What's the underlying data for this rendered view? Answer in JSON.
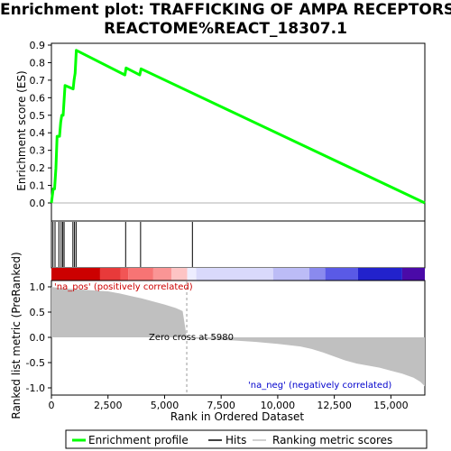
{
  "chart_data": {
    "type": "line",
    "title_line1": "Enrichment plot: TRAFFICKING OF AMPA RECEPTORS%",
    "title_line2": "REACTOME%REACT_18307.1",
    "top_panel": {
      "ylabel": "Enrichment score (ES)",
      "ylim": [
        -0.05,
        0.9
      ],
      "yticks": [
        "0.0",
        "0.1",
        "0.2",
        "0.3",
        "0.4",
        "0.5",
        "0.6",
        "0.7",
        "0.8",
        "0.9"
      ],
      "series_color": "#00ff00",
      "profile": {
        "x": [
          0,
          40,
          80,
          140,
          200,
          250,
          300,
          360,
          410,
          460,
          520,
          600,
          960,
          1000,
          1050,
          1100,
          3250,
          3300,
          3900,
          3960,
          16500
        ],
        "y": [
          0.0,
          0.04,
          0.08,
          0.08,
          0.2,
          0.38,
          0.38,
          0.38,
          0.46,
          0.5,
          0.5,
          0.67,
          0.65,
          0.7,
          0.74,
          0.87,
          0.73,
          0.77,
          0.73,
          0.765,
          0.0
        ]
      },
      "hits": [
        70,
        160,
        330,
        430,
        500,
        560,
        950,
        1020,
        1090,
        3280,
        3940,
        6230
      ]
    },
    "bottom_panel": {
      "ylabel": "Ranked list metric (PreRanked)",
      "ylim": [
        -1.1,
        1.1
      ],
      "yticks": [
        "-1.0",
        "-0.5",
        "0.0",
        "0.5",
        "1.0"
      ],
      "xlabel": "Rank in Ordered Dataset",
      "xticks": [
        "0",
        "2,500",
        "5,000",
        "7,500",
        "10,000",
        "12,500",
        "15,000"
      ],
      "xtick_values": [
        0,
        2500,
        5000,
        7500,
        10000,
        12500,
        15000
      ],
      "xlim": [
        0,
        16500
      ],
      "metric": {
        "x": [
          0,
          300,
          800,
          1500,
          2500,
          3000,
          3500,
          4000,
          4500,
          5000,
          5500,
          5800,
          5980,
          6200,
          7000,
          8000,
          9000,
          10000,
          11000,
          11500,
          12000,
          12500,
          13000,
          13500,
          14000,
          14500,
          15000,
          15500,
          16000,
          16300,
          16500
        ],
        "y": [
          1.0,
          0.98,
          0.96,
          0.94,
          0.91,
          0.87,
          0.82,
          0.77,
          0.71,
          0.65,
          0.58,
          0.52,
          0.0,
          -0.02,
          -0.04,
          -0.06,
          -0.09,
          -0.13,
          -0.18,
          -0.23,
          -0.3,
          -0.38,
          -0.46,
          -0.52,
          -0.56,
          -0.6,
          -0.66,
          -0.72,
          -0.8,
          -0.88,
          -0.97
        ]
      },
      "zero_cross_label": "Zero cross at 5980",
      "zero_cross_x": 5980,
      "pos_label": "'na_pos' (positively correlated)",
      "neg_label": "'na_neg' (negatively correlated)",
      "pos_color": "#cc0000",
      "neg_color": "#0000cc",
      "fill_color": "#c0c0c0"
    },
    "color_bar": {
      "segments": [
        {
          "x0": 0,
          "x1": 2150,
          "color": "#cc0000"
        },
        {
          "x0": 2150,
          "x1": 3050,
          "color": "#e83a3a"
        },
        {
          "x0": 3050,
          "x1": 3400,
          "color": "#f25555"
        },
        {
          "x0": 3400,
          "x1": 4500,
          "color": "#f77474"
        },
        {
          "x0": 4500,
          "x1": 5300,
          "color": "#fa9595"
        },
        {
          "x0": 5300,
          "x1": 6000,
          "color": "#fdc4c4"
        },
        {
          "x0": 6000,
          "x1": 6400,
          "color": "#ededff"
        },
        {
          "x0": 6400,
          "x1": 9800,
          "color": "#d9d9fb"
        },
        {
          "x0": 9800,
          "x1": 11400,
          "color": "#bcbcf6"
        },
        {
          "x0": 11400,
          "x1": 12100,
          "color": "#8a8aee"
        },
        {
          "x0": 12100,
          "x1": 13550,
          "color": "#5a5ae6"
        },
        {
          "x0": 13550,
          "x1": 15500,
          "color": "#2222cc"
        },
        {
          "x0": 15500,
          "x1": 16500,
          "color": "#4a0aa8"
        }
      ]
    },
    "legend": {
      "items": [
        {
          "label": "Enrichment profile",
          "color": "#00ff00"
        },
        {
          "label": "Hits",
          "color": "#000000"
        },
        {
          "label": "Ranking metric scores",
          "color": "#c0c0c0"
        }
      ]
    }
  }
}
